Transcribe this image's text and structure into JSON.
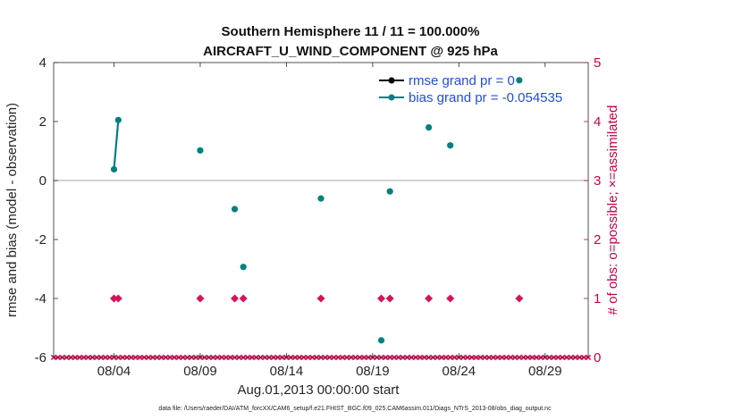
{
  "chart_data": {
    "type": "scatter",
    "title": "Southern Hemisphere 11 / 11 = 100.000%",
    "subtitle": "AIRCRAFT_U_WIND_COMPONENT @ 925 hPa",
    "xlabel": "Aug.01,2013 00:00:00 start",
    "ylabel": "rmse and bias (model - observation)",
    "ylabel_right": "# of obs: o=possible; ×=assimilated",
    "xlim": [
      0.5,
      31.5
    ],
    "ylim": [
      -6,
      4
    ],
    "ylim_right": [
      0,
      5
    ],
    "xticks": [
      {
        "value": 4,
        "label": "08/04"
      },
      {
        "value": 9,
        "label": "08/09"
      },
      {
        "value": 14,
        "label": "08/14"
      },
      {
        "value": 19,
        "label": "08/19"
      },
      {
        "value": 24,
        "label": "08/24"
      },
      {
        "value": 29,
        "label": "08/29"
      }
    ],
    "yticks": [
      -6,
      -4,
      -2,
      0,
      2,
      4
    ],
    "yticks_right": [
      0,
      1,
      2,
      3,
      4,
      5
    ],
    "zero_line": 0,
    "legend_position": "top-right",
    "series": [
      {
        "name": "rmse grand pr = 0",
        "color": "#000000",
        "axis": "left",
        "x": [
          27.5
        ],
        "values": [
          3.4
        ]
      },
      {
        "name": "bias grand pr = -0.054535",
        "color": "#00807f",
        "axis": "left",
        "x": [
          4.0,
          4.25,
          9.0,
          11.0,
          11.5,
          16.0,
          19.5,
          20.0,
          22.25,
          23.5
        ],
        "values": [
          0.38,
          2.05,
          1.02,
          -0.97,
          -2.93,
          -0.61,
          -5.42,
          -0.37,
          1.8,
          1.19
        ],
        "connected_x": [
          4.0,
          4.25
        ]
      },
      {
        "name": "# of obs possible",
        "color": "#d4145a",
        "axis": "right",
        "x": [
          4.0,
          4.25,
          9.0,
          11.0,
          11.5,
          16.0,
          19.5,
          20.0,
          22.25,
          23.5,
          27.5
        ],
        "values": [
          1,
          1,
          1,
          1,
          1,
          1,
          1,
          1,
          1,
          1,
          1
        ]
      },
      {
        "name": "# of obs assimilated",
        "color": "#d4145a",
        "axis": "right",
        "x_start": 0.5,
        "x_end": 31.5,
        "x_step": 0.25,
        "values": [
          0
        ]
      }
    ]
  },
  "footnote": "data file: /Users/raeder/DAI/ATM_forcXX/CAM6_setup/f.e21.FHIST_BGC.f09_025.CAM6assim.011/Diags_NTrS_2013-08/obs_diag_output.nc"
}
